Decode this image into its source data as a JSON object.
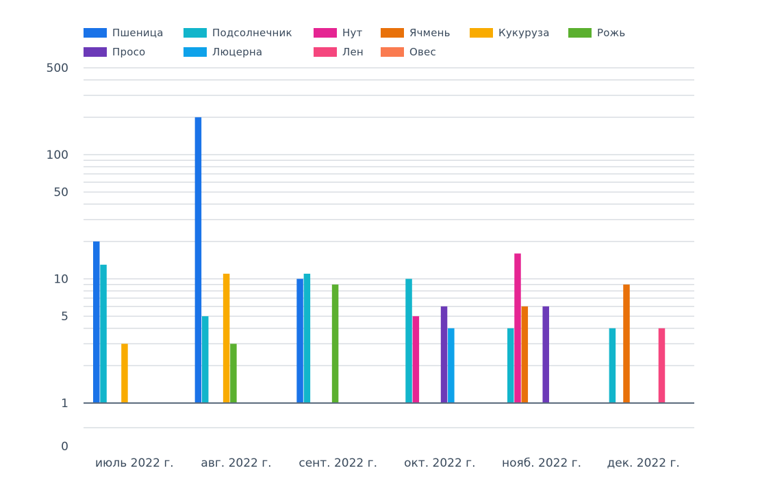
{
  "chart_data": {
    "type": "bar",
    "y_scale": "symlog",
    "ylim": [
      0,
      500
    ],
    "y_ticks": [
      0,
      1,
      5,
      10,
      50,
      100,
      500
    ],
    "y_tick_labels": [
      "0",
      "1",
      "5",
      "10",
      "50",
      "100",
      "500"
    ],
    "grid": true,
    "legend_position": "top-left",
    "categories": [
      "июль 2022 г.",
      "авг. 2022 г.",
      "сент. 2022 г.",
      "окт. 2022 г.",
      "нояб. 2022 г.",
      "дек. 2022 г."
    ],
    "series": [
      {
        "name": "Пшеница",
        "color": "#1a73e8",
        "values": [
          20,
          200,
          10,
          null,
          null,
          null
        ]
      },
      {
        "name": "Подсолнечник",
        "color": "#12b5cb",
        "values": [
          13,
          5,
          11,
          10,
          4,
          4
        ]
      },
      {
        "name": "Нут",
        "color": "#e52592",
        "values": [
          null,
          null,
          null,
          5,
          16,
          null
        ]
      },
      {
        "name": "Ячмень",
        "color": "#e8710a",
        "values": [
          null,
          null,
          null,
          null,
          6,
          9
        ]
      },
      {
        "name": "Кукуруза",
        "color": "#f9ab00",
        "values": [
          3,
          11,
          null,
          null,
          null,
          null
        ]
      },
      {
        "name": "Рожь",
        "color": "#5bb02f",
        "values": [
          null,
          3,
          9,
          null,
          null,
          null
        ]
      },
      {
        "name": "Просо",
        "color": "#6c3ab8",
        "values": [
          null,
          null,
          null,
          6,
          6,
          null
        ]
      },
      {
        "name": "Люцерна",
        "color": "#0ea2ea",
        "values": [
          null,
          null,
          null,
          4,
          null,
          null
        ]
      },
      {
        "name": "Лен",
        "color": "#f5467e",
        "values": [
          null,
          null,
          null,
          null,
          null,
          4
        ]
      },
      {
        "name": "Овес",
        "color": "#fa7b50",
        "values": [
          null,
          null,
          null,
          null,
          null,
          null
        ]
      }
    ]
  }
}
